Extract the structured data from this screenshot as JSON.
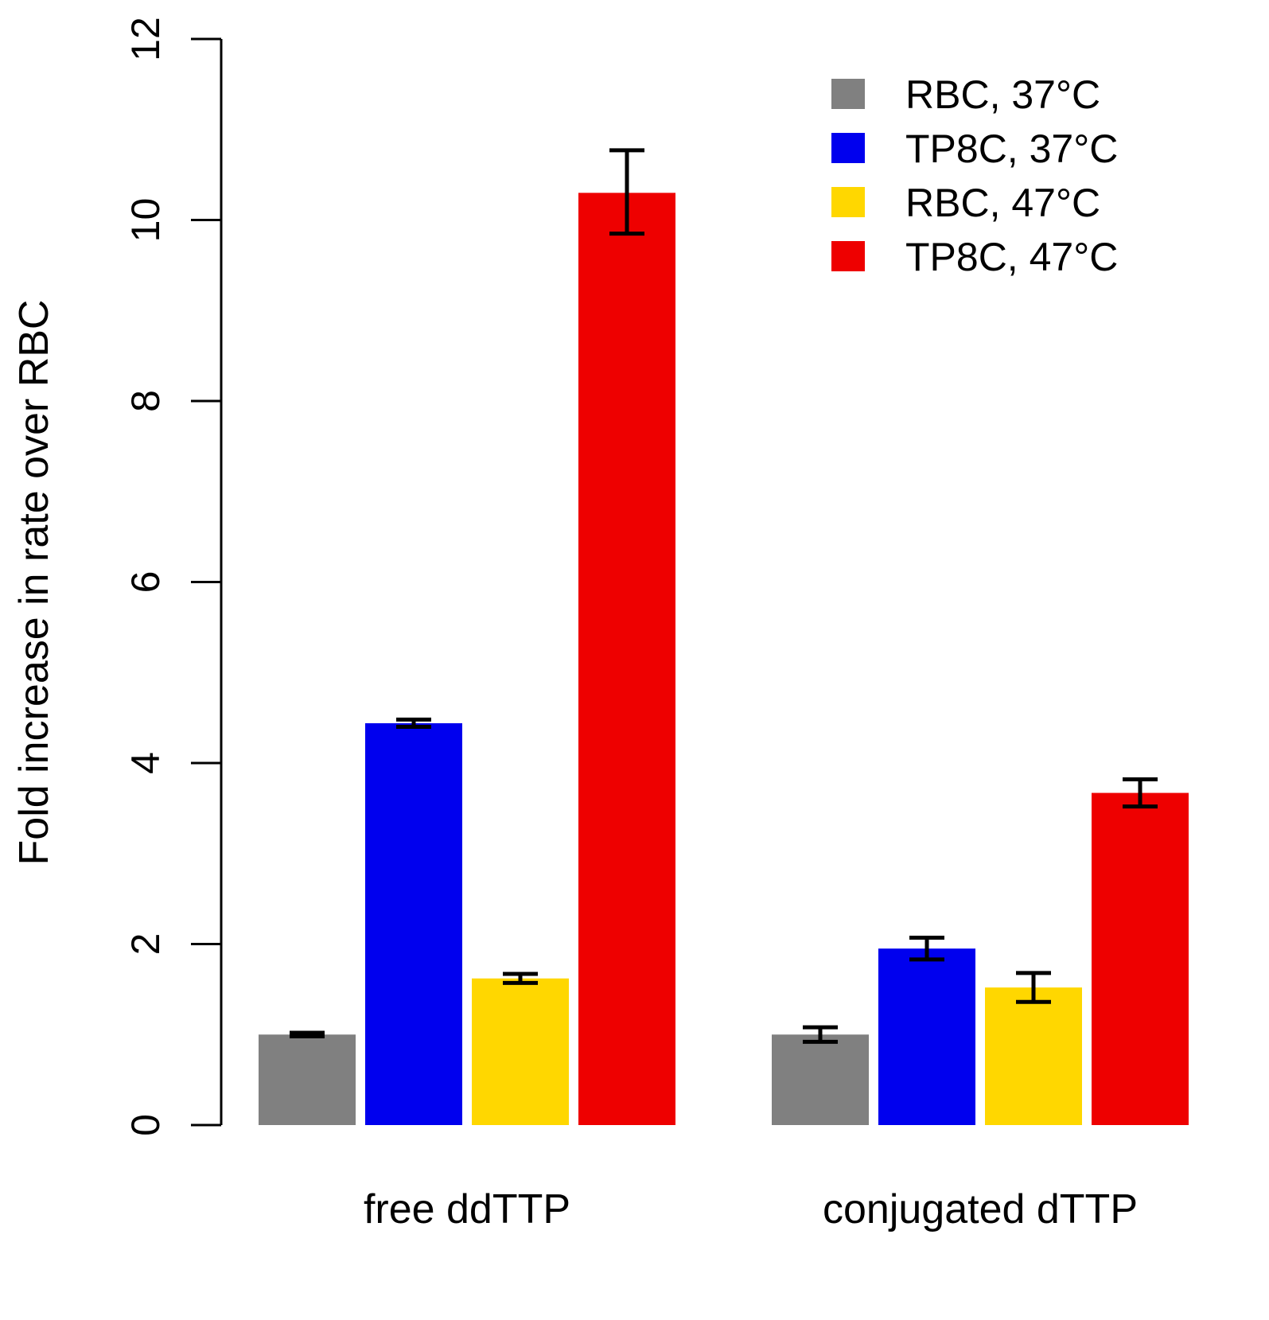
{
  "chart_data": {
    "type": "bar",
    "title": "",
    "xlabel": "",
    "ylabel": "Fold increase in rate over RBC",
    "ylim": [
      0,
      12
    ],
    "yticks": [
      0,
      2,
      4,
      6,
      8,
      10,
      12
    ],
    "grid": false,
    "legend_position": "top-right",
    "categories": [
      "free ddTTP",
      "conjugated dTTP"
    ],
    "series": [
      {
        "name": "RBC, 37°C",
        "color": "#808080",
        "values": [
          1.0,
          1.0
        ],
        "err_low": [
          0.98,
          0.92
        ],
        "err_high": [
          1.02,
          1.08
        ]
      },
      {
        "name": "TP8C, 37°C",
        "color": "#0000ee",
        "values": [
          4.44,
          1.95
        ],
        "err_low": [
          4.4,
          1.83
        ],
        "err_high": [
          4.48,
          2.07
        ]
      },
      {
        "name": "RBC, 47°C",
        "color": "#ffd700",
        "values": [
          1.62,
          1.52
        ],
        "err_low": [
          1.57,
          1.36
        ],
        "err_high": [
          1.67,
          1.68
        ]
      },
      {
        "name": "TP8C, 47°C",
        "color": "#ee0000",
        "values": [
          10.3,
          3.67
        ],
        "err_low": [
          9.85,
          3.52
        ],
        "err_high": [
          10.77,
          3.82
        ]
      }
    ]
  }
}
